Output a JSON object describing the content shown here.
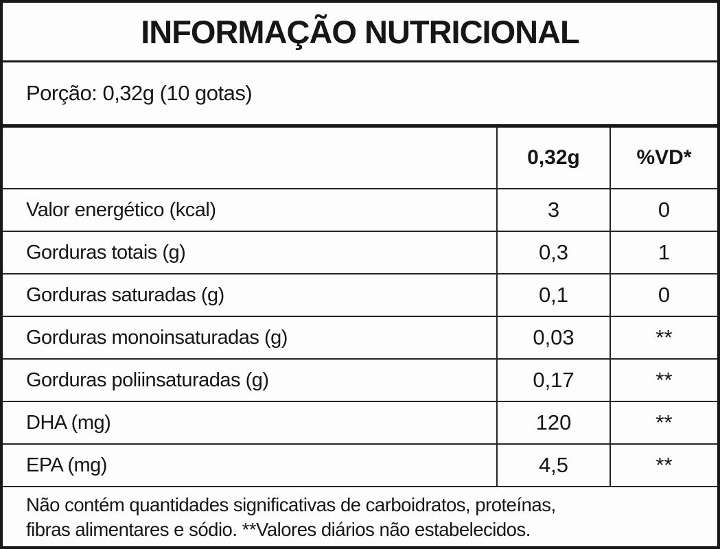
{
  "title": "INFORMAÇÃO NUTRICIONAL",
  "serving": "Porção: 0,32g (10 gotas)",
  "table": {
    "columns": {
      "amount_header": "0,32g",
      "vd_header": "%VD*"
    },
    "rows": [
      {
        "label": "Valor energético (kcal)",
        "amount": "3",
        "vd": "0"
      },
      {
        "label": "Gorduras totais (g)",
        "amount": "0,3",
        "vd": "1"
      },
      {
        "label": "Gorduras saturadas (g)",
        "amount": "0,1",
        "vd": "0"
      },
      {
        "label": "Gorduras monoinsaturadas (g)",
        "amount": "0,03",
        "vd": "**"
      },
      {
        "label": "Gorduras poliinsaturadas (g)",
        "amount": "0,17",
        "vd": "**"
      },
      {
        "label": "DHA (mg)",
        "amount": "120",
        "vd": "**"
      },
      {
        "label": "EPA (mg)",
        "amount": "4,5",
        "vd": "**"
      }
    ]
  },
  "footnote": {
    "line1": "Não contém quantidades significativas de carboidratos, proteínas,",
    "line2": "fibras alimentares e sódio. **Valores diários não estabelecidos."
  },
  "colors": {
    "border": "#181818",
    "background": "#fdfdfd",
    "text": "#161616"
  }
}
